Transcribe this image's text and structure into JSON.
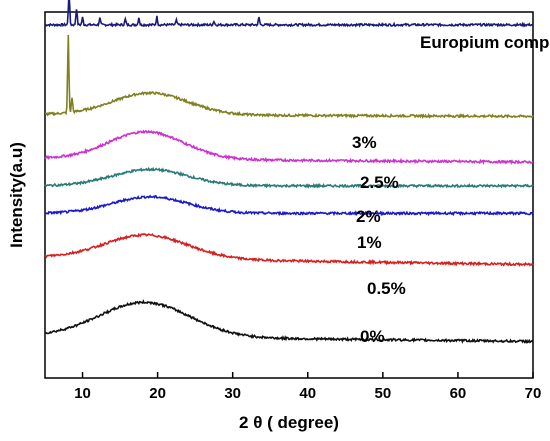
{
  "chart_data": {
    "type": "line",
    "xlabel": "2 θ ( degree)",
    "ylabel": "Intensity(a.u)",
    "xlim": [
      5,
      70
    ],
    "x_ticks": [
      10,
      20,
      30,
      40,
      50,
      60,
      70
    ],
    "y_ticks_shown": false,
    "grid": false,
    "series": [
      {
        "name": "Europium complex",
        "color": "#1a1a7a",
        "baseline": 0.965,
        "sharp_peaks": [
          [
            8.2,
            0.09
          ],
          [
            9.2,
            0.045
          ],
          [
            10.0,
            0.02
          ],
          [
            12.3,
            0.018
          ],
          [
            15.7,
            0.015
          ],
          [
            17.5,
            0.02
          ],
          [
            19.9,
            0.022
          ],
          [
            22.5,
            0.012
          ],
          [
            27.5,
            0.01
          ],
          [
            33.5,
            0.02
          ]
        ],
        "broad_peak": null
      },
      {
        "name": "3%",
        "color": "#808020",
        "baseline": 0.72,
        "sharp_peaks": [
          [
            8.1,
            0.21
          ],
          [
            8.6,
            0.04
          ]
        ],
        "broad_peak": {
          "center": 19.0,
          "height": 0.06,
          "width": 5.0
        },
        "tail_slope": 0.005
      },
      {
        "name": "2.5%",
        "color": "#cc33cc",
        "baseline": 0.6,
        "sharp_peaks": [],
        "broad_peak": {
          "center": 18.5,
          "height": 0.075,
          "width": 5.0
        },
        "tail_slope": 0.01
      },
      {
        "name": "2%",
        "color": "#2a7a7a",
        "baseline": 0.525,
        "sharp_peaks": [],
        "broad_peak": {
          "center": 19.0,
          "height": 0.045,
          "width": 5.0
        },
        "tail_slope": 0.0
      },
      {
        "name": "1%",
        "color": "#1a1acc",
        "baseline": 0.45,
        "sharp_peaks": [],
        "broad_peak": {
          "center": 19.0,
          "height": 0.045,
          "width": 5.0
        },
        "tail_slope": 0.0
      },
      {
        "name": "0.5%",
        "color": "#d62020",
        "baseline": 0.33,
        "sharp_peaks": [],
        "broad_peak": {
          "center": 18.5,
          "height": 0.065,
          "width": 5.5
        },
        "tail_slope": 0.02
      },
      {
        "name": "0%",
        "color": "#111111",
        "baseline": 0.115,
        "sharp_peaks": [],
        "broad_peak": {
          "center": 18.3,
          "height": 0.095,
          "width": 6.0
        },
        "tail_slope": 0.015
      }
    ]
  }
}
